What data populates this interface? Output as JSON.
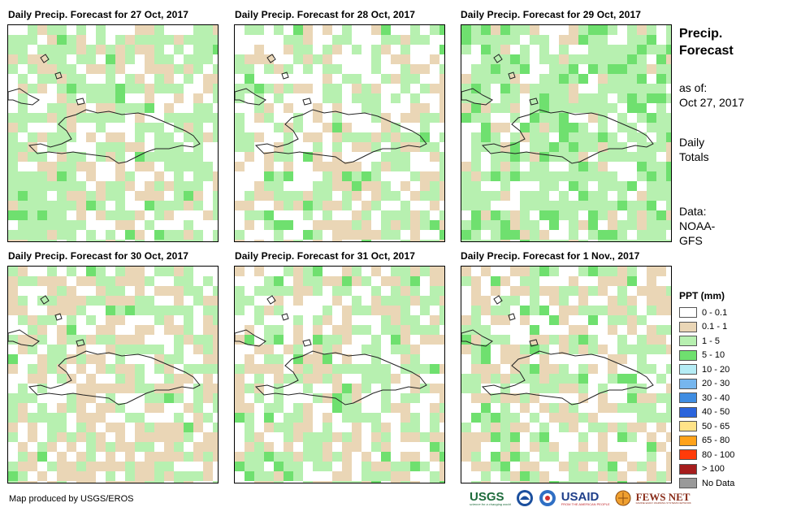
{
  "panels": [
    {
      "title": "Daily Precip. Forecast for 27 Oct, 2017",
      "seed": 27,
      "bias": {
        "c0": 0.3,
        "c1": 0.22,
        "c2": 0.45,
        "c3": 0.03
      }
    },
    {
      "title": "Daily Precip. Forecast for 28 Oct, 2017",
      "seed": 28,
      "bias": {
        "c0": 0.4,
        "c1": 0.25,
        "c2": 0.3,
        "c3": 0.05
      }
    },
    {
      "title": "Daily Precip. Forecast for 29 Oct, 2017",
      "seed": 29,
      "bias": {
        "c0": 0.22,
        "c1": 0.1,
        "c2": 0.55,
        "c3": 0.13
      }
    },
    {
      "title": "Daily Precip. Forecast for 30 Oct, 2017",
      "seed": 30,
      "bias": {
        "c0": 0.34,
        "c1": 0.35,
        "c2": 0.28,
        "c3": 0.03
      }
    },
    {
      "title": "Daily Precip. Forecast for 31 Oct, 2017",
      "seed": 31,
      "bias": {
        "c0": 0.34,
        "c1": 0.3,
        "c2": 0.32,
        "c3": 0.04
      }
    },
    {
      "title": "Daily Precip. Forecast for 1 Nov., 2017",
      "seed": 32,
      "bias": {
        "c0": 0.3,
        "c1": 0.33,
        "c2": 0.3,
        "c3": 0.07
      }
    }
  ],
  "sidebar": {
    "title_line1": "Precip.",
    "title_line2": "Forecast",
    "asof_label": "as of:",
    "asof_date": "Oct 27, 2017",
    "daily_line1": "Daily",
    "daily_line2": "Totals",
    "data_line1": "Data:",
    "data_line2": "NOAA-",
    "data_line3": "GFS"
  },
  "legend": {
    "title": "PPT (mm)",
    "items": [
      {
        "label": "0 - 0.1",
        "color": "#ffffff"
      },
      {
        "label": "0.1 - 1",
        "color": "#ead6b6"
      },
      {
        "label": "1 - 5",
        "color": "#b7f0b0"
      },
      {
        "label": "5 - 10",
        "color": "#6fe06f"
      },
      {
        "label": "10 - 20",
        "color": "#b5ecf5"
      },
      {
        "label": "20 - 30",
        "color": "#76b6ee"
      },
      {
        "label": "30 - 40",
        "color": "#3f8de2"
      },
      {
        "label": "40 - 50",
        "color": "#2a64dc"
      },
      {
        "label": "50 - 65",
        "color": "#ffe388"
      },
      {
        "label": "65 - 80",
        "color": "#ffa21a"
      },
      {
        "label": "80 - 100",
        "color": "#ff3b0a"
      },
      {
        "label": "> 100",
        "color": "#a61d1d"
      },
      {
        "label": "No Data",
        "color": "#999999"
      }
    ]
  },
  "footer": {
    "credit": "Map produced by USGS/EROS"
  },
  "logos": {
    "usgs": "USGS",
    "usgs_tagline": "science for a changing world",
    "usaid": "USAID",
    "usaid_tagline": "FROM THE AMERICAN PEOPLE",
    "fewsnet": "FEWS NET",
    "fewsnet_tagline": "FAMINE EARLY WARNING SYSTEMS NETWORK"
  }
}
